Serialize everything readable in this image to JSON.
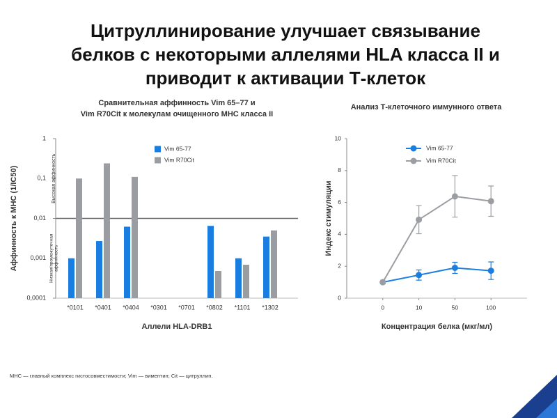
{
  "title_lines": [
    "Цитруллинирование улучшает связывание",
    "белков с некоторыми аллелями HLA класса II и",
    "приводит к активации Т-клеток"
  ],
  "footnote": "МНС — главный комплекс гистосовместимости; Vim — виментин; Cit — цитруллин.",
  "chart_data": [
    {
      "type": "bar",
      "title": [
        "Сравнительная аффинность Vim 65–77 и",
        "Vim R70Cit к молекулам очищенного МНС класса II"
      ],
      "x_label": "Аллели HLA-DRB1",
      "y_label": "Аффинность к МНС (1/IC50)",
      "annotations": [
        "Высокая аффинность",
        "Низкая/промежуточная",
        "аффинность"
      ],
      "categories": [
        "*0101",
        "*0401",
        "*0404",
        "*0301",
        "*0701",
        "*0802",
        "*1101",
        "*1302"
      ],
      "series": [
        {
          "name": "Vim 65-77",
          "color": "#1a7ee0",
          "values": [
            0.001,
            0.0027,
            0.0062,
            null,
            null,
            0.0065,
            0.001,
            0.0035
          ]
        },
        {
          "name": "Vim R70Cit",
          "color": "#9a9ea3",
          "values": [
            0.1,
            0.24,
            0.11,
            null,
            null,
            0.00048,
            0.00069,
            0.005
          ]
        }
      ],
      "log_scale": true,
      "ylim": [
        0.0001,
        1
      ],
      "yticks": [
        {
          "value": 0.0001,
          "label": "0,0001"
        },
        {
          "value": 0.001,
          "label": "0,001"
        },
        {
          "value": 0.01,
          "label": "0,01"
        },
        {
          "value": 0.1,
          "label": "0,1"
        },
        1
      ],
      "reference_line": 0.01,
      "legend": "top"
    },
    {
      "type": "line",
      "title": [
        "Анализ Т-клеточного иммунного ответа"
      ],
      "x_label": "Концентрация белка (мкг/мл)",
      "y_label": "Индекс стимуляции",
      "categories": [
        "0",
        "10",
        "50",
        "100"
      ],
      "series": [
        {
          "name": "Vim 65-77",
          "color": "#1a7ee0",
          "values": [
            1.0,
            1.45,
            1.9,
            1.72
          ],
          "errors": [
            0,
            0.32,
            0.35,
            0.55
          ]
        },
        {
          "name": "Vim R70Cit",
          "color": "#9a9ea3",
          "values": [
            1.0,
            4.92,
            6.38,
            6.08
          ],
          "errors": [
            0,
            0.88,
            1.3,
            0.95
          ]
        }
      ],
      "ylim": [
        0,
        10
      ],
      "yticks": [
        0,
        2,
        4,
        6,
        8,
        10
      ],
      "legend": "top"
    }
  ]
}
